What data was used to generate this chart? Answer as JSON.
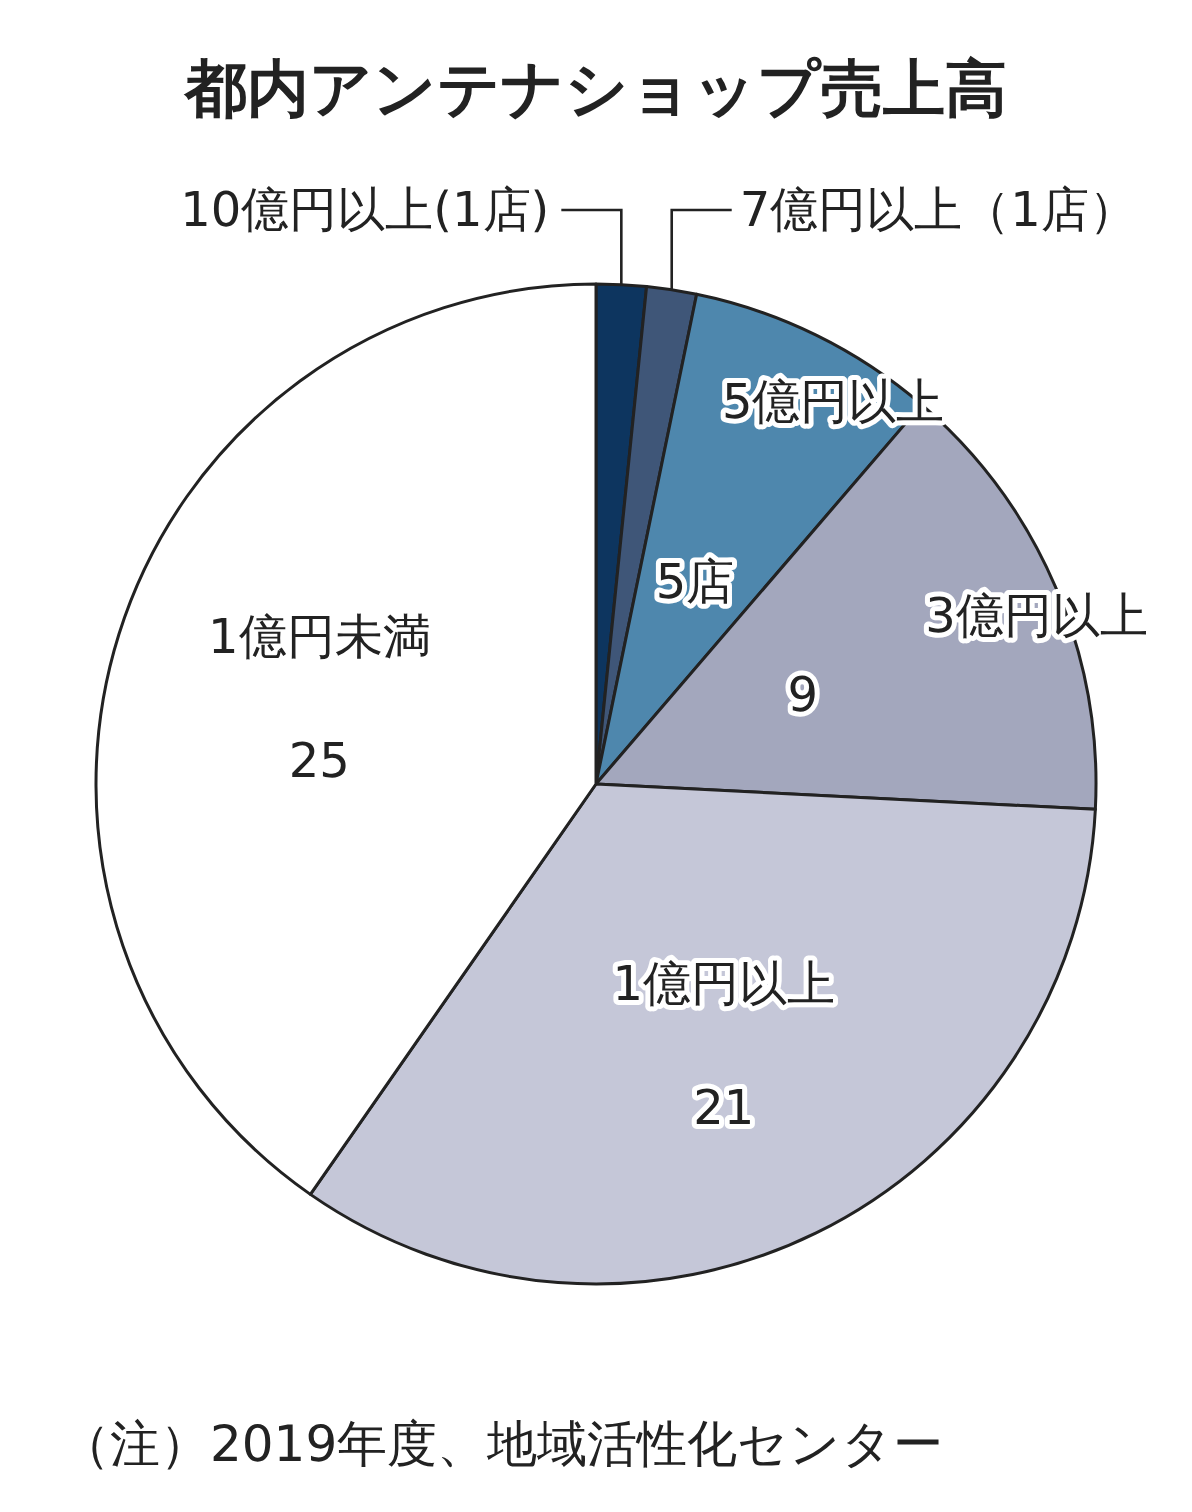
{
  "chart_data": {
    "type": "pie",
    "title": "都内アンテナショップ売上高",
    "categories": [
      "10億円以上(1店)",
      "7億円以上（1店）",
      "5億円以上",
      "3億円以上",
      "1億円以上",
      "1億円未満"
    ],
    "values": [
      1,
      1,
      5,
      9,
      21,
      25
    ],
    "value_labels": [
      null,
      null,
      "5店",
      "9",
      "21",
      "25"
    ],
    "colors": [
      "#0d355f",
      "#3f5678",
      "#4e87ad",
      "#a3a7bd",
      "#c5c7d8",
      "#ffffff"
    ],
    "annotations": [
      "（注）2019年度、地域活性化センター"
    ]
  }
}
